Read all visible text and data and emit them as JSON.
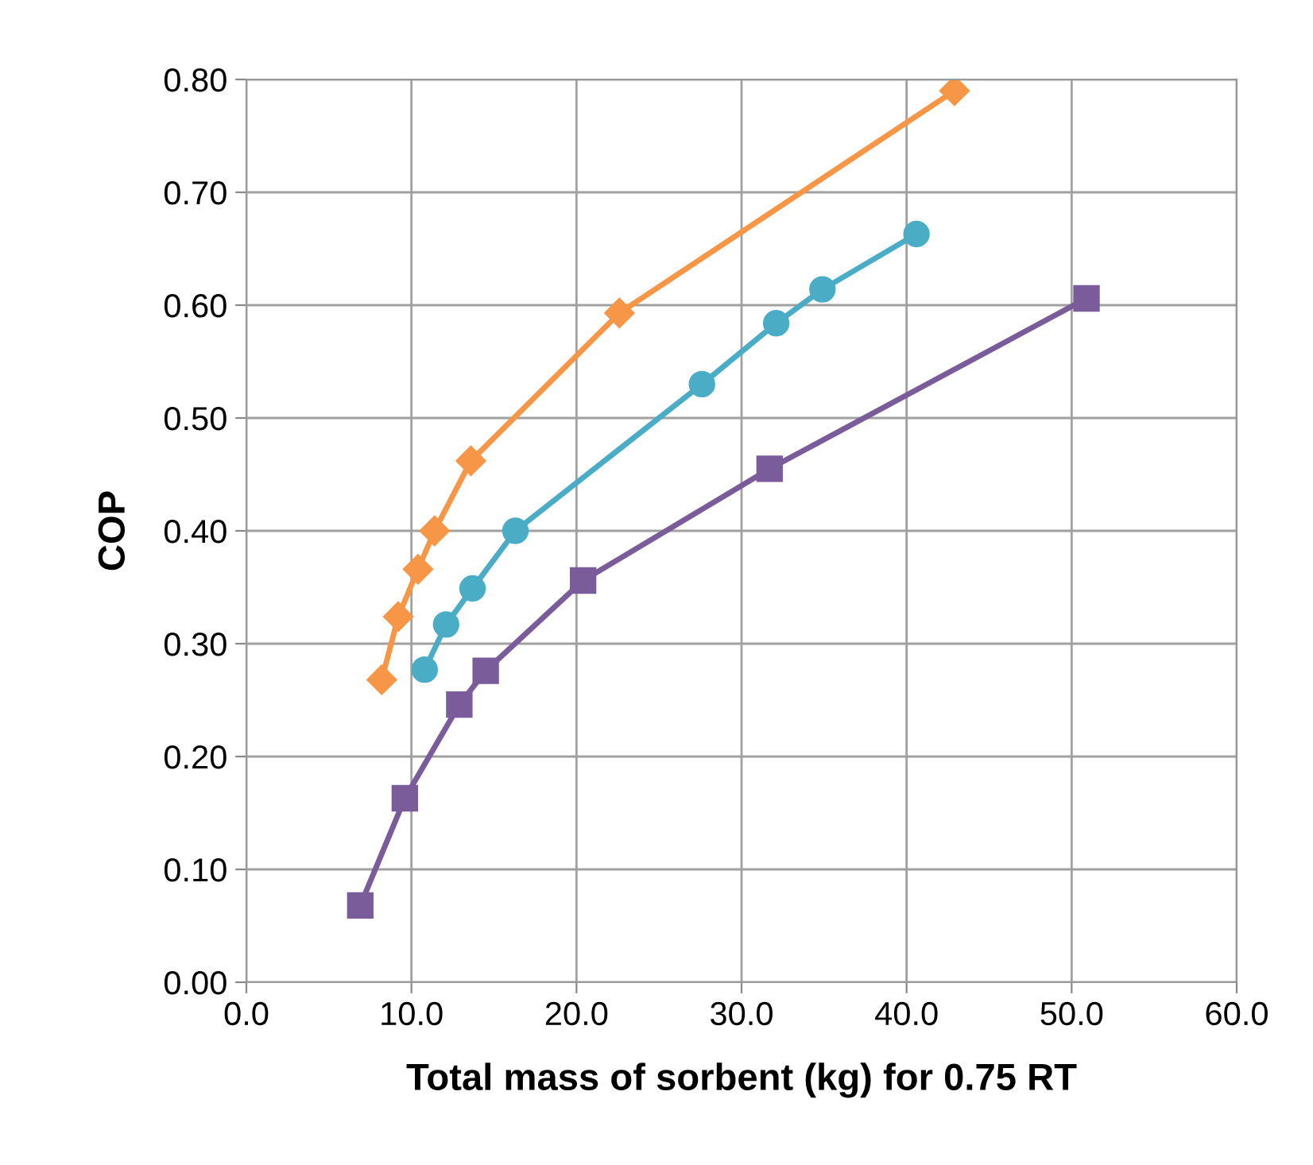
{
  "chart_data": {
    "type": "line",
    "xlabel": "Total mass of sorbent (kg) for 0.75 RT",
    "ylabel": "COP",
    "xlim": [
      0,
      60
    ],
    "ylim": [
      0,
      0.8
    ],
    "xticks": [
      {
        "value": 0,
        "label": "0.0"
      },
      {
        "value": 10,
        "label": "10.0"
      },
      {
        "value": 20,
        "label": "20.0"
      },
      {
        "value": 30,
        "label": "30.0"
      },
      {
        "value": 40,
        "label": "40.0"
      },
      {
        "value": 50,
        "label": "50.0"
      },
      {
        "value": 60,
        "label": "60.0"
      }
    ],
    "yticks": [
      {
        "value": 0,
        "label": "0.00"
      },
      {
        "value": 0.1,
        "label": "0.10"
      },
      {
        "value": 0.2,
        "label": "0.20"
      },
      {
        "value": 0.3,
        "label": "0.30"
      },
      {
        "value": 0.4,
        "label": "0.40"
      },
      {
        "value": 0.5,
        "label": "0.50"
      },
      {
        "value": 0.6,
        "label": "0.60"
      },
      {
        "value": 0.7,
        "label": "0.70"
      },
      {
        "value": 0.8,
        "label": "0.80"
      }
    ],
    "grid": true,
    "series": [
      {
        "color": "#f79646",
        "marker": "diamond",
        "x": [
          8.2,
          9.2,
          10.4,
          11.4,
          13.6,
          22.6,
          42.9
        ],
        "values": [
          0.268,
          0.324,
          0.366,
          0.4,
          0.462,
          0.593,
          0.79
        ]
      },
      {
        "color": "#4bacc6",
        "marker": "circle",
        "x": [
          10.8,
          12.1,
          13.7,
          16.3,
          27.6,
          32.1,
          34.9,
          40.6
        ],
        "values": [
          0.277,
          0.317,
          0.349,
          0.4,
          0.53,
          0.584,
          0.614,
          0.663
        ]
      },
      {
        "color": "#7b5c9b",
        "marker": "square",
        "x": [
          6.9,
          9.6,
          12.9,
          14.5,
          20.4,
          31.7,
          50.9
        ],
        "values": [
          0.068,
          0.163,
          0.246,
          0.276,
          0.356,
          0.455,
          0.606
        ]
      }
    ]
  }
}
